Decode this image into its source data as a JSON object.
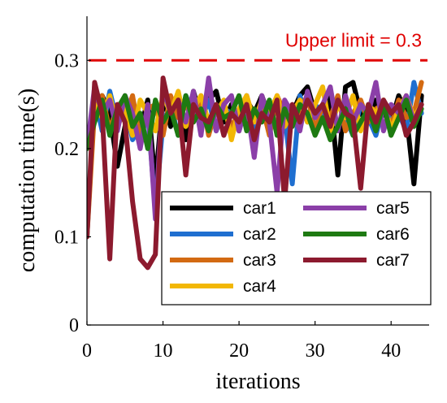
{
  "chart_data": {
    "type": "line",
    "xlabel": "iterations",
    "ylabel": "computation time(s)",
    "xlim": [
      0,
      45
    ],
    "ylim": [
      0,
      0.35
    ],
    "xticks": [
      0,
      10,
      20,
      30,
      40
    ],
    "yticks": [
      0,
      0.1,
      0.2,
      0.3
    ],
    "ytick_labels": [
      "0",
      "0.1",
      "0.2",
      "0.3"
    ],
    "grid": false,
    "legend_position": "bottom-right",
    "annotation": {
      "text": "Upper limit = 0.3",
      "y": 0.3,
      "color": "#e00000"
    },
    "x": [
      0,
      1,
      2,
      3,
      4,
      5,
      6,
      7,
      8,
      9,
      10,
      11,
      12,
      13,
      14,
      15,
      16,
      17,
      18,
      19,
      20,
      21,
      22,
      23,
      24,
      25,
      26,
      27,
      28,
      29,
      30,
      31,
      32,
      33,
      34,
      35,
      36,
      37,
      38,
      39,
      40,
      41,
      42,
      43,
      44
    ],
    "series": [
      {
        "name": "car1",
        "color": "#000000",
        "values": [
          0.21,
          0.245,
          0.26,
          0.24,
          0.18,
          0.225,
          0.25,
          0.22,
          0.255,
          0.16,
          0.26,
          0.225,
          0.255,
          0.21,
          0.265,
          0.235,
          0.255,
          0.265,
          0.23,
          0.25,
          0.22,
          0.255,
          0.24,
          0.26,
          0.235,
          0.25,
          0.22,
          0.24,
          0.26,
          0.27,
          0.24,
          0.23,
          0.26,
          0.17,
          0.27,
          0.275,
          0.24,
          0.23,
          0.255,
          0.24,
          0.23,
          0.26,
          0.24,
          0.16,
          0.26
        ]
      },
      {
        "name": "car2",
        "color": "#1f6fd0",
        "values": [
          0.1,
          0.26,
          0.22,
          0.265,
          0.23,
          0.25,
          0.21,
          0.225,
          0.24,
          0.13,
          0.23,
          0.25,
          0.215,
          0.26,
          0.24,
          0.23,
          0.255,
          0.22,
          0.245,
          0.24,
          0.23,
          0.26,
          0.215,
          0.25,
          0.23,
          0.255,
          0.24,
          0.16,
          0.26,
          0.23,
          0.25,
          0.24,
          0.22,
          0.255,
          0.235,
          0.215,
          0.25,
          0.235,
          0.215,
          0.25,
          0.23,
          0.24,
          0.22,
          0.275,
          0.24
        ]
      },
      {
        "name": "car3",
        "color": "#d36a12",
        "values": [
          0.1,
          0.245,
          0.26,
          0.22,
          0.25,
          0.235,
          0.26,
          0.21,
          0.245,
          0.25,
          0.215,
          0.26,
          0.235,
          0.25,
          0.23,
          0.26,
          0.215,
          0.245,
          0.25,
          0.225,
          0.24,
          0.26,
          0.23,
          0.25,
          0.215,
          0.26,
          0.24,
          0.225,
          0.245,
          0.26,
          0.22,
          0.25,
          0.235,
          0.26,
          0.22,
          0.24,
          0.255,
          0.23,
          0.245,
          0.25,
          0.225,
          0.255,
          0.235,
          0.24,
          0.275
        ]
      },
      {
        "name": "car4",
        "color": "#f2b705",
        "values": [
          0.2,
          0.25,
          0.235,
          0.26,
          0.225,
          0.245,
          0.215,
          0.255,
          0.24,
          0.22,
          0.26,
          0.24,
          0.265,
          0.225,
          0.245,
          0.26,
          0.23,
          0.24,
          0.255,
          0.21,
          0.245,
          0.26,
          0.23,
          0.255,
          0.24,
          0.26,
          0.225,
          0.24,
          0.255,
          0.23,
          0.25,
          0.27,
          0.22,
          0.25,
          0.235,
          0.26,
          0.22,
          0.25,
          0.24,
          0.255,
          0.22,
          0.245,
          0.26,
          0.235,
          0.25
        ]
      },
      {
        "name": "car5",
        "color": "#8b3fa8",
        "values": [
          0.2,
          0.27,
          0.24,
          0.255,
          0.22,
          0.26,
          0.24,
          0.2,
          0.25,
          0.12,
          0.27,
          0.24,
          0.255,
          0.23,
          0.265,
          0.215,
          0.28,
          0.22,
          0.25,
          0.26,
          0.22,
          0.25,
          0.19,
          0.26,
          0.23,
          0.15,
          0.255,
          0.24,
          0.22,
          0.265,
          0.235,
          0.25,
          0.27,
          0.22,
          0.26,
          0.23,
          0.25,
          0.24,
          0.275,
          0.22,
          0.25,
          0.24,
          0.26,
          0.23,
          0.25
        ]
      },
      {
        "name": "car6",
        "color": "#1e7a12",
        "values": [
          0.2,
          0.23,
          0.255,
          0.215,
          0.245,
          0.26,
          0.225,
          0.24,
          0.2,
          0.255,
          0.23,
          0.245,
          0.215,
          0.26,
          0.23,
          0.245,
          0.22,
          0.25,
          0.235,
          0.24,
          0.26,
          0.22,
          0.245,
          0.23,
          0.255,
          0.215,
          0.245,
          0.225,
          0.25,
          0.24,
          0.215,
          0.235,
          0.21,
          0.225,
          0.245,
          0.215,
          0.23,
          0.245,
          0.22,
          0.25,
          0.215,
          0.235,
          0.255,
          0.225,
          0.245
        ]
      },
      {
        "name": "car7",
        "color": "#8c1a2e",
        "values": [
          0.1,
          0.275,
          0.24,
          0.075,
          0.25,
          0.23,
          0.14,
          0.075,
          0.065,
          0.08,
          0.28,
          0.24,
          0.255,
          0.17,
          0.25,
          0.235,
          0.23,
          0.25,
          0.215,
          0.24,
          0.23,
          0.25,
          0.21,
          0.24,
          0.23,
          0.255,
          0.14,
          0.25,
          0.23,
          0.255,
          0.24,
          0.25,
          0.225,
          0.255,
          0.24,
          0.235,
          0.155,
          0.25,
          0.23,
          0.255,
          0.24,
          0.25,
          0.215,
          0.23,
          0.25
        ]
      }
    ]
  }
}
